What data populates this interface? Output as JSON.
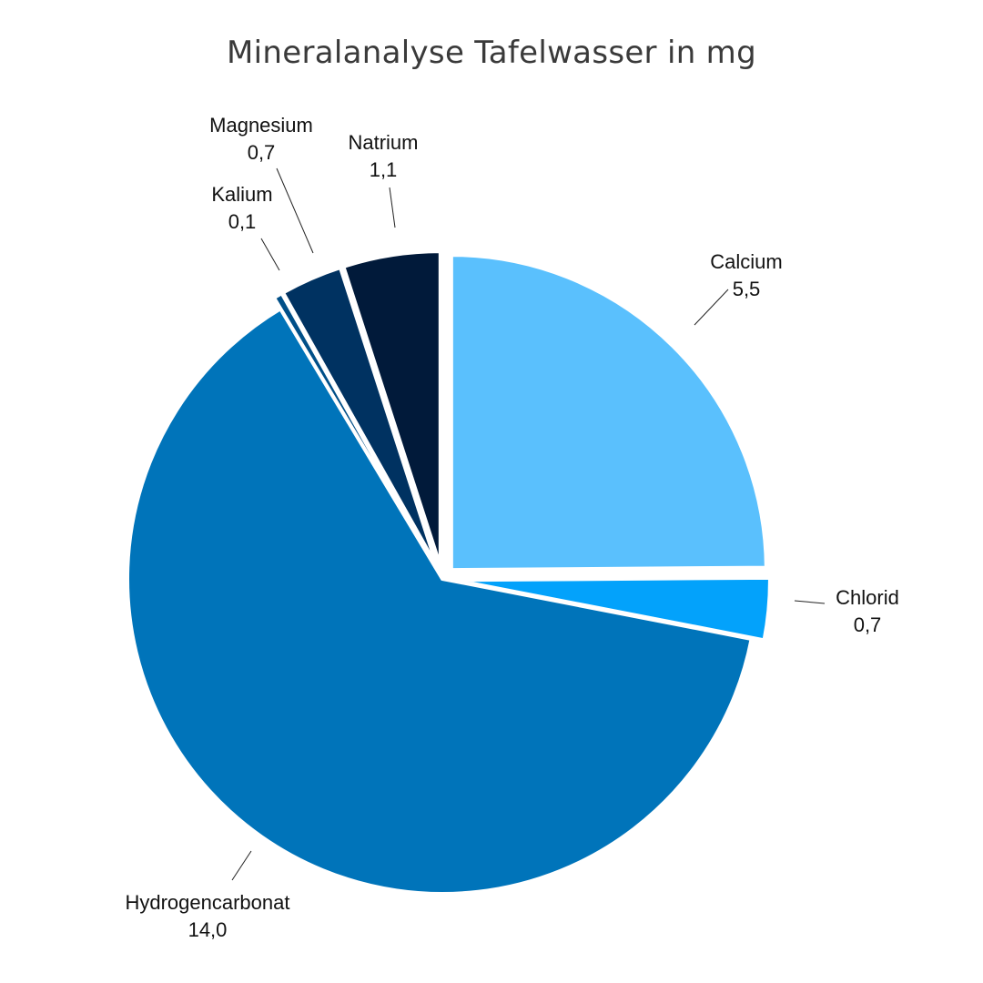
{
  "chart_data": {
    "type": "pie",
    "title": "Mineralanalyse Tafelwasser in mg",
    "slices": [
      {
        "label": "Calcium",
        "value": 5.5,
        "value_text": "5,5",
        "color": "#5AC0FD",
        "exploded": true
      },
      {
        "label": "Chlorid",
        "value": 0.7,
        "value_text": "0,7",
        "color": "#03A2FB",
        "exploded": true
      },
      {
        "label": "Hydrogencarbonat",
        "value": 14.0,
        "value_text": "14,0",
        "color": "#0074BA",
        "exploded": false
      },
      {
        "label": "Kalium",
        "value": 0.1,
        "value_text": "0,1",
        "color": "#004F88",
        "exploded": true
      },
      {
        "label": "Magnesium",
        "value": 0.7,
        "value_text": "0,7",
        "color": "#003261",
        "exploded": true
      },
      {
        "label": "Natrium",
        "value": 1.1,
        "value_text": "1,1",
        "color": "#011A3A",
        "exploded": true
      }
    ]
  }
}
